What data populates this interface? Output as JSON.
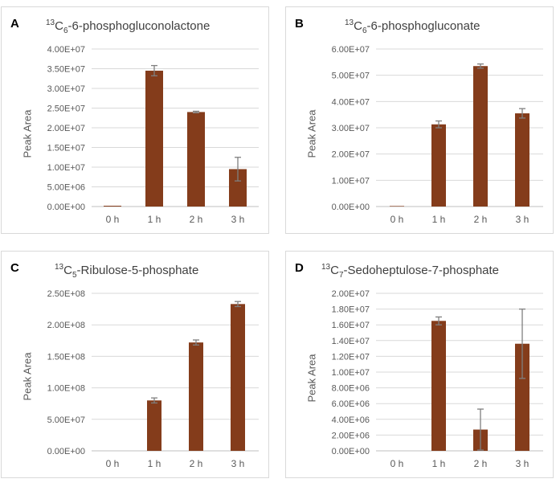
{
  "colors": {
    "bar": "#843c1b",
    "error": "#7f7f7f",
    "grid": "#d9d9d9",
    "axis": "#bfbfbf"
  },
  "panels": {
    "A": {
      "letter": "A",
      "title_iso": "13",
      "title_c": "C",
      "title_sub": "6",
      "title_rest": "-6-phosphogluconolactone",
      "ylabel": "Peak Area"
    },
    "B": {
      "letter": "B",
      "title_iso": "13",
      "title_c": "C",
      "title_sub": "6",
      "title_rest": "-6-phosphogluconate",
      "ylabel": "Peak Area"
    },
    "C": {
      "letter": "C",
      "title_iso": "13",
      "title_c": "C",
      "title_sub": "5",
      "title_rest": "-Ribulose-5-phosphate",
      "ylabel": "Peak Area"
    },
    "D": {
      "letter": "D",
      "title_iso": "13",
      "title_c": "C",
      "title_sub": "7",
      "title_rest": "-Sedoheptulose-7-phosphate",
      "ylabel": "Peak Area"
    }
  },
  "chart_data": [
    {
      "id": "A",
      "type": "bar",
      "title": "13C6-6-phosphogluconolactone",
      "xlabel": "",
      "ylabel": "Peak Area",
      "categories": [
        "0 h",
        "1 h",
        "2 h",
        "3 h"
      ],
      "values": [
        200000,
        34500000,
        24000000,
        9500000
      ],
      "errors": [
        0,
        1300000,
        200000,
        3000000
      ],
      "ylim": [
        0,
        40000000
      ],
      "ticks": [
        0,
        5000000,
        10000000,
        15000000,
        20000000,
        25000000,
        30000000,
        35000000,
        40000000
      ],
      "tick_labels": [
        "0.00E+00",
        "5.00E+06",
        "1.00E+07",
        "1.50E+07",
        "2.00E+07",
        "2.50E+07",
        "3.00E+07",
        "3.50E+07",
        "4.00E+07"
      ],
      "grid": true
    },
    {
      "id": "B",
      "type": "bar",
      "title": "13C6-6-phosphogluconate",
      "xlabel": "",
      "ylabel": "Peak Area",
      "categories": [
        "0 h",
        "1 h",
        "2 h",
        "3 h"
      ],
      "values": [
        200000,
        31300000,
        53500000,
        35500000
      ],
      "errors": [
        0,
        1300000,
        800000,
        1800000
      ],
      "ylim": [
        0,
        60000000
      ],
      "ticks": [
        0,
        10000000,
        20000000,
        30000000,
        40000000,
        50000000,
        60000000
      ],
      "tick_labels": [
        "0.00E+00",
        "1.00E+07",
        "2.00E+07",
        "3.00E+07",
        "4.00E+07",
        "5.00E+07",
        "6.00E+07"
      ],
      "grid": true
    },
    {
      "id": "C",
      "type": "bar",
      "title": "13C5-Ribulose-5-phosphate",
      "xlabel": "",
      "ylabel": "Peak Area",
      "categories": [
        "0 h",
        "1 h",
        "2 h",
        "3 h"
      ],
      "values": [
        0,
        80000000,
        172000000,
        233000000
      ],
      "errors": [
        0,
        4000000,
        4000000,
        4000000
      ],
      "ylim": [
        0,
        250000000
      ],
      "ticks": [
        0,
        50000000,
        100000000,
        150000000,
        200000000,
        250000000
      ],
      "tick_labels": [
        "0.00E+00",
        "5.00E+07",
        "1.00E+08",
        "1.50E+08",
        "2.00E+08",
        "2.50E+08"
      ],
      "grid": true
    },
    {
      "id": "D",
      "type": "bar",
      "title": "13C7-Sedoheptulose-7-phosphate",
      "xlabel": "",
      "ylabel": "Peak Area",
      "categories": [
        "0 h",
        "1 h",
        "2 h",
        "3 h"
      ],
      "values": [
        0,
        16500000,
        2700000,
        13600000
      ],
      "errors": [
        0,
        500000,
        2600000,
        4400000
      ],
      "ylim": [
        0,
        20000000
      ],
      "ticks": [
        0,
        2000000,
        4000000,
        6000000,
        8000000,
        10000000,
        12000000,
        14000000,
        16000000,
        18000000,
        20000000
      ],
      "tick_labels": [
        "0.00E+00",
        "2.00E+06",
        "4.00E+06",
        "6.00E+06",
        "8.00E+06",
        "1.00E+07",
        "1.20E+07",
        "1.40E+07",
        "1.60E+07",
        "1.80E+07",
        "2.00E+07"
      ],
      "grid": true
    }
  ]
}
